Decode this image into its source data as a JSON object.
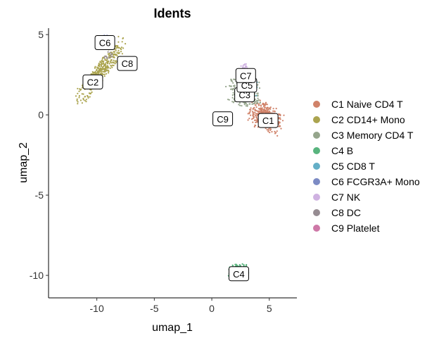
{
  "chart_data": {
    "type": "scatter",
    "title": "Idents",
    "xlabel": "umap_1",
    "ylabel": "umap_2",
    "xlim": [
      -14.2,
      7.4
    ],
    "ylim": [
      -11.4,
      5.4
    ],
    "x_ticks": [
      -10,
      -5,
      0,
      5
    ],
    "y_ticks": [
      5,
      0,
      -5,
      -10
    ],
    "x_tick_labels": [
      "-10",
      "-5",
      "0",
      "5"
    ],
    "y_tick_labels": [
      "5",
      "0",
      "-5",
      "-10"
    ],
    "grid": false,
    "legend_position": "right",
    "series": [
      {
        "name": "C1 Naive CD4 T",
        "color": "#D08269",
        "label": "C1",
        "label_pos": [
          4.9,
          -0.35
        ],
        "blobs": [
          {
            "cx": 4.7,
            "cy": -0.15,
            "rx": 1.4,
            "ry": 0.75,
            "n": 420,
            "angle": -20
          }
        ]
      },
      {
        "name": "C2 CD14+ Mono",
        "color": "#ABA44F",
        "label": "C2",
        "label_pos": [
          -10.35,
          2.05
        ],
        "blobs": [
          {
            "cx": -9.7,
            "cy": 2.7,
            "rx": 2.6,
            "ry": 0.55,
            "n": 380,
            "angle": 42
          }
        ]
      },
      {
        "name": "C3 Memory CD4 T",
        "color": "#95A58C",
        "label": "C3",
        "label_pos": [
          2.85,
          1.25
        ],
        "blobs": [
          {
            "cx": 2.9,
            "cy": 1.4,
            "rx": 1.3,
            "ry": 0.8,
            "n": 300,
            "angle": -10
          }
        ]
      },
      {
        "name": "C4 B",
        "color": "#58B47E",
        "label": "C4",
        "label_pos": [
          2.35,
          -9.9
        ],
        "blobs": [
          {
            "cx": 2.3,
            "cy": -9.75,
            "rx": 0.85,
            "ry": 0.45,
            "n": 260,
            "angle": 0
          }
        ]
      },
      {
        "name": "C5 CD8 T",
        "color": "#64AFC7",
        "label": "C5",
        "label_pos": [
          3.05,
          1.85
        ],
        "blobs": [
          {
            "cx": 3.2,
            "cy": 1.7,
            "rx": 0.7,
            "ry": 0.55,
            "n": 90,
            "angle": 0
          }
        ]
      },
      {
        "name": "C6 FCGR3A+ Mono",
        "color": "#7C8BC4",
        "label": "C6",
        "label_pos": [
          -9.3,
          4.5
        ],
        "blobs": [
          {
            "cx": -9.25,
            "cy": 4.6,
            "rx": 0.5,
            "ry": 0.45,
            "n": 60,
            "angle": 0
          }
        ]
      },
      {
        "name": "C7 NK",
        "color": "#CFB2E1",
        "label": "C7",
        "label_pos": [
          2.95,
          2.45
        ],
        "blobs": [
          {
            "cx": 2.75,
            "cy": 2.85,
            "rx": 0.35,
            "ry": 0.3,
            "n": 35,
            "angle": 0
          }
        ]
      },
      {
        "name": "C8 DC",
        "color": "#968C92",
        "label": "C8",
        "label_pos": [
          -7.35,
          3.2
        ],
        "blobs": [
          {
            "cx": -9.0,
            "cy": 3.7,
            "rx": 0.35,
            "ry": 0.3,
            "n": 12,
            "angle": 0
          }
        ]
      },
      {
        "name": "C9 Platelet",
        "color": "#CE78A7",
        "label": "C9",
        "label_pos": [
          0.95,
          -0.25
        ],
        "blobs": []
      }
    ]
  }
}
